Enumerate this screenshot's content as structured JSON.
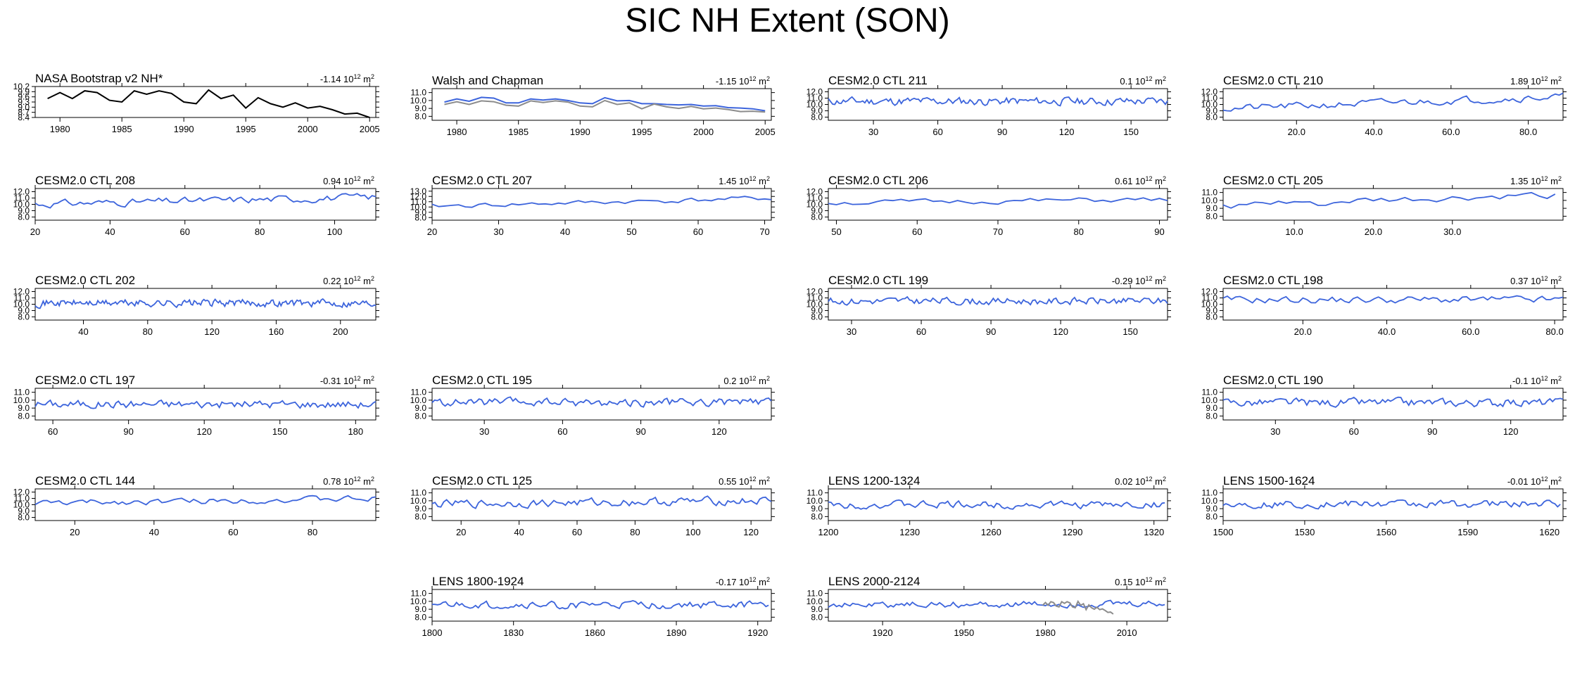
{
  "title": "SIC NH Extent (SON)",
  "colors": {
    "model": "#3c64dc",
    "obs_black": "#000000",
    "obs_gray": "#8c8c8c",
    "axis": "#000000"
  },
  "chart_data": [
    {
      "type": "line",
      "title": "NASA Bootstrap v2 NH*",
      "trend": "-1.14",
      "trend_units": "10",
      "trend_exp": "12",
      "trend_unit": "m",
      "trend_unit_exp": "2",
      "xlim": [
        1978,
        2005.5
      ],
      "ylim": [
        8.4,
        10.2
      ],
      "xticks": [
        1980,
        1985,
        1990,
        1995,
        2000,
        2005
      ],
      "xtick_labels": [
        "1980",
        "1985",
        "1990",
        "1995",
        "2000",
        "2005"
      ],
      "yticks": [
        8.4,
        8.7,
        9.0,
        9.3,
        9.6,
        9.9,
        10.2
      ],
      "ytick_labels": [
        "8.4",
        "8.7",
        "9.0",
        "9.3",
        "9.6",
        "9.9",
        "10.2"
      ],
      "series": [
        {
          "color": "obs_black",
          "x": [
            1979,
            1980,
            1981,
            1982,
            1983,
            1984,
            1985,
            1986,
            1987,
            1988,
            1989,
            1990,
            1991,
            1992,
            1993,
            1994,
            1995,
            1996,
            1997,
            1998,
            1999,
            2000,
            2001,
            2002,
            2003,
            2004,
            2005
          ],
          "values": [
            9.5,
            9.85,
            9.5,
            9.95,
            9.85,
            9.4,
            9.3,
            9.95,
            9.75,
            9.95,
            9.8,
            9.3,
            9.2,
            10.0,
            9.5,
            9.7,
            8.95,
            9.55,
            9.2,
            9.0,
            9.25,
            8.95,
            9.05,
            8.85,
            8.6,
            8.65,
            8.4
          ]
        }
      ]
    },
    {
      "type": "line",
      "title": "Walsh and Chapman",
      "trend": "-1.15",
      "xlim": [
        1978,
        2005.5
      ],
      "ylim": [
        7.5,
        11.5
      ],
      "xticks": [
        1980,
        1985,
        1990,
        1995,
        2000,
        2005
      ],
      "xtick_labels": [
        "1980",
        "1985",
        "1990",
        "1995",
        "2000",
        "2005"
      ],
      "yticks": [
        8.0,
        9.0,
        10.0,
        11.0
      ],
      "ytick_labels": [
        "8.0",
        "9.0",
        "10.0",
        "11.0"
      ],
      "series": [
        {
          "color": "model",
          "x": [
            1979,
            1980,
            1981,
            1982,
            1983,
            1984,
            1985,
            1986,
            1987,
            1988,
            1989,
            1990,
            1991,
            1992,
            1993,
            1994,
            1995,
            1996,
            1997,
            1998,
            1999,
            2000,
            2001,
            2002,
            2003,
            2004,
            2005
          ],
          "values": [
            9.8,
            10.2,
            9.9,
            10.4,
            10.3,
            9.7,
            9.7,
            10.2,
            10.05,
            10.2,
            10.0,
            9.7,
            9.6,
            10.35,
            9.95,
            10.0,
            9.6,
            9.6,
            9.5,
            9.45,
            9.5,
            9.3,
            9.35,
            9.1,
            9.05,
            8.95,
            8.7
          ]
        },
        {
          "color": "obs_gray",
          "x": [
            1979,
            1980,
            1981,
            1982,
            1983,
            1984,
            1985,
            1986,
            1987,
            1988,
            1989,
            1990,
            1991,
            1992,
            1993,
            1994,
            1995,
            1996,
            1997,
            1998,
            1999,
            2000,
            2001,
            2002,
            2003,
            2004,
            2005
          ],
          "values": [
            9.5,
            9.85,
            9.5,
            9.95,
            9.85,
            9.4,
            9.3,
            9.95,
            9.75,
            9.95,
            9.8,
            9.3,
            9.2,
            10.0,
            9.5,
            9.7,
            8.95,
            9.55,
            9.2,
            9.0,
            9.25,
            8.95,
            9.05,
            8.85,
            8.6,
            8.65,
            8.55
          ]
        }
      ]
    },
    {
      "type": "line",
      "title": "CESM2.0 CTL 211",
      "trend": "0.1",
      "xlim": [
        9,
        167
      ],
      "ylim": [
        7.5,
        12.5
      ],
      "xticks": [
        30,
        60,
        90,
        120,
        150
      ],
      "xtick_labels": [
        "30",
        "60",
        "90",
        "120",
        "150"
      ],
      "yticks": [
        8.0,
        9.0,
        10.0,
        11.0,
        12.0
      ],
      "ytick_labels": [
        "8.0",
        "9.0",
        "10.0",
        "11.0",
        "12.0"
      ],
      "gen": {
        "x0": 9,
        "x1": 167,
        "mean": 10.5,
        "amp": 0.55,
        "seed": 11
      }
    },
    {
      "type": "line",
      "title": "CESM2.0 CTL 210",
      "trend": "1.89",
      "xlim": [
        1,
        89
      ],
      "ylim": [
        7.5,
        12.5
      ],
      "xticks": [
        20,
        40,
        60,
        80
      ],
      "xtick_labels": [
        "20.0",
        "40.0",
        "60.0",
        "80.0"
      ],
      "yticks": [
        8.0,
        9.0,
        10.0,
        11.0,
        12.0
      ],
      "ytick_labels": [
        "8.0",
        "9.0",
        "10.0",
        "11.0",
        "12.0"
      ],
      "gen": {
        "x0": 1,
        "x1": 89,
        "mean": 10.3,
        "amp": 0.5,
        "seed": 21,
        "slope": 0.022
      }
    },
    {
      "type": "line",
      "title": "CESM2.0 CTL 208",
      "trend": "0.94",
      "xlim": [
        20,
        111
      ],
      "ylim": [
        7.5,
        12.5
      ],
      "xticks": [
        20,
        40,
        60,
        80,
        100
      ],
      "xtick_labels": [
        "20",
        "40",
        "60",
        "80",
        "100"
      ],
      "yticks": [
        8.0,
        9.0,
        10.0,
        11.0,
        12.0
      ],
      "ytick_labels": [
        "8.0",
        "9.0",
        "10.0",
        "11.0",
        "12.0"
      ],
      "gen": {
        "x0": 20,
        "x1": 111,
        "mean": 10.6,
        "amp": 0.5,
        "seed": 31,
        "slope": 0.012
      }
    },
    {
      "type": "line",
      "title": "CESM2.0 CTL 207",
      "trend": "1.45",
      "xlim": [
        20,
        71
      ],
      "ylim": [
        7.5,
        13.5
      ],
      "xticks": [
        20,
        30,
        40,
        50,
        60,
        70
      ],
      "xtick_labels": [
        "20",
        "30",
        "40",
        "50",
        "60",
        "70"
      ],
      "yticks": [
        8.0,
        9.0,
        10.0,
        11.0,
        12.0,
        13.0
      ],
      "ytick_labels": [
        "8.0",
        "9.0",
        "10.0",
        "11.0",
        "12.0",
        "13.0"
      ],
      "gen": {
        "x0": 20,
        "x1": 71,
        "mean": 10.9,
        "amp": 0.4,
        "seed": 41,
        "slope": 0.03
      }
    },
    {
      "type": "line",
      "title": "CESM2.0 CTL 206",
      "trend": "0.61",
      "xlim": [
        49,
        91
      ],
      "ylim": [
        7.5,
        12.5
      ],
      "xticks": [
        50,
        60,
        70,
        80,
        90
      ],
      "xtick_labels": [
        "50",
        "60",
        "70",
        "80",
        "90"
      ],
      "yticks": [
        8.0,
        9.0,
        10.0,
        11.0,
        12.0
      ],
      "ytick_labels": [
        "8.0",
        "9.0",
        "10.0",
        "11.0",
        "12.0"
      ],
      "gen": {
        "x0": 49,
        "x1": 91,
        "mean": 10.5,
        "amp": 0.35,
        "seed": 51,
        "slope": 0.012
      }
    },
    {
      "type": "line",
      "title": "CESM2.0 CTL 205",
      "trend": "1.35",
      "xlim": [
        1,
        44
      ],
      "ylim": [
        7.5,
        11.5
      ],
      "xticks": [
        10,
        20,
        30
      ],
      "xtick_labels": [
        "10.0",
        "20.0",
        "30.0"
      ],
      "yticks": [
        8.0,
        9.0,
        10.0,
        11.0
      ],
      "ytick_labels": [
        "8.0",
        "9.0",
        "10.0",
        "11.0"
      ],
      "gen": {
        "x0": 1,
        "x1": 43,
        "mean": 9.9,
        "amp": 0.4,
        "seed": 61,
        "slope": 0.03
      }
    },
    {
      "type": "line",
      "title": "CESM2.0 CTL 202",
      "trend": "0.22",
      "xlim": [
        10,
        222
      ],
      "ylim": [
        7.5,
        12.5
      ],
      "xticks": [
        40,
        80,
        120,
        160,
        200
      ],
      "xtick_labels": [
        "40",
        "80",
        "120",
        "160",
        "200"
      ],
      "yticks": [
        8.0,
        9.0,
        10.0,
        11.0,
        12.0
      ],
      "ytick_labels": [
        "8.0",
        "9.0",
        "10.0",
        "11.0",
        "12.0"
      ],
      "gen": {
        "x0": 10,
        "x1": 222,
        "mean": 10.2,
        "amp": 0.5,
        "seed": 71
      }
    },
    {
      "type": "line",
      "title": "CESM2.0 CTL 199",
      "trend": "-0.29",
      "xlim": [
        20,
        166
      ],
      "ylim": [
        7.5,
        12.5
      ],
      "xticks": [
        30,
        60,
        90,
        120,
        150
      ],
      "xtick_labels": [
        "30",
        "60",
        "90",
        "120",
        "150"
      ],
      "yticks": [
        8.0,
        9.0,
        10.0,
        11.0,
        12.0
      ],
      "ytick_labels": [
        "8.0",
        "9.0",
        "10.0",
        "11.0",
        "12.0"
      ],
      "gen": {
        "x0": 20,
        "x1": 166,
        "mean": 10.5,
        "amp": 0.5,
        "seed": 81
      }
    },
    {
      "type": "line",
      "title": "CESM2.0 CTL 198",
      "trend": "0.37",
      "xlim": [
        1,
        82
      ],
      "ylim": [
        7.5,
        12.5
      ],
      "xticks": [
        20,
        40,
        60,
        80
      ],
      "xtick_labels": [
        "20.0",
        "40.0",
        "60.0",
        "80.0"
      ],
      "yticks": [
        8.0,
        9.0,
        10.0,
        11.0,
        12.0
      ],
      "ytick_labels": [
        "8.0",
        "9.0",
        "10.0",
        "11.0",
        "12.0"
      ],
      "gen": {
        "x0": 1,
        "x1": 82,
        "mean": 10.7,
        "amp": 0.5,
        "seed": 91
      }
    },
    {
      "type": "line",
      "title": "CESM2.0 CTL 197",
      "trend": "-0.31",
      "xlim": [
        53,
        188
      ],
      "ylim": [
        7.5,
        11.5
      ],
      "xticks": [
        60,
        90,
        120,
        150,
        180
      ],
      "xtick_labels": [
        "60",
        "90",
        "120",
        "150",
        "180"
      ],
      "yticks": [
        8.0,
        9.0,
        10.0,
        11.0
      ],
      "ytick_labels": [
        "8.0",
        "9.0",
        "10.0",
        "11.0"
      ],
      "gen": {
        "x0": 53,
        "x1": 188,
        "mean": 9.5,
        "amp": 0.45,
        "seed": 101
      }
    },
    {
      "type": "line",
      "title": "CESM2.0 CTL 195",
      "trend": "0.2",
      "xlim": [
        10,
        140
      ],
      "ylim": [
        7.5,
        11.5
      ],
      "xticks": [
        30,
        60,
        90,
        120
      ],
      "xtick_labels": [
        "30",
        "60",
        "90",
        "120"
      ],
      "yticks": [
        8.0,
        9.0,
        10.0,
        11.0
      ],
      "ytick_labels": [
        "8.0",
        "9.0",
        "10.0",
        "11.0"
      ],
      "gen": {
        "x0": 10,
        "x1": 140,
        "mean": 9.7,
        "amp": 0.45,
        "seed": 111
      }
    },
    {
      "type": "line",
      "title": "CESM2.0 CTL 190",
      "trend": "-0.1",
      "xlim": [
        10,
        140
      ],
      "ylim": [
        7.5,
        11.5
      ],
      "xticks": [
        30,
        60,
        90,
        120
      ],
      "xtick_labels": [
        "30",
        "60",
        "90",
        "120"
      ],
      "yticks": [
        8.0,
        9.0,
        10.0,
        11.0
      ],
      "ytick_labels": [
        "8.0",
        "9.0",
        "10.0",
        "11.0"
      ],
      "gen": {
        "x0": 10,
        "x1": 140,
        "mean": 9.7,
        "amp": 0.45,
        "seed": 121
      }
    },
    {
      "type": "line",
      "title": "CESM2.0 CTL 144",
      "trend": "0.78",
      "xlim": [
        10,
        96
      ],
      "ylim": [
        7.5,
        12.5
      ],
      "xticks": [
        20,
        40,
        60,
        80
      ],
      "xtick_labels": [
        "20",
        "40",
        "60",
        "80"
      ],
      "yticks": [
        8.0,
        9.0,
        10.0,
        11.0,
        12.0
      ],
      "ytick_labels": [
        "8.0",
        "9.0",
        "10.0",
        "11.0",
        "12.0"
      ],
      "gen": {
        "x0": 10,
        "x1": 96,
        "mean": 10.6,
        "amp": 0.4,
        "seed": 131,
        "slope": 0.008
      }
    },
    {
      "type": "line",
      "title": "CESM2.0 CTL 125",
      "trend": "0.55",
      "xlim": [
        10,
        127
      ],
      "ylim": [
        7.5,
        11.5
      ],
      "xticks": [
        20,
        40,
        60,
        80,
        100,
        120
      ],
      "xtick_labels": [
        "20",
        "40",
        "60",
        "80",
        "100",
        "120"
      ],
      "yticks": [
        8.0,
        9.0,
        10.0,
        11.0
      ],
      "ytick_labels": [
        "8.0",
        "9.0",
        "10.0",
        "11.0"
      ],
      "gen": {
        "x0": 10,
        "x1": 127,
        "mean": 9.8,
        "amp": 0.45,
        "seed": 141,
        "slope": 0.004
      }
    },
    {
      "type": "line",
      "title": "LENS 1200-1324",
      "trend": "0.02",
      "xlim": [
        1200,
        1325
      ],
      "ylim": [
        7.5,
        11.5
      ],
      "xticks": [
        1200,
        1230,
        1260,
        1290,
        1320
      ],
      "xtick_labels": [
        "1200",
        "1230",
        "1260",
        "1290",
        "1320"
      ],
      "yticks": [
        8.0,
        9.0,
        10.0,
        11.0
      ],
      "ytick_labels": [
        "8.0",
        "9.0",
        "10.0",
        "11.0"
      ],
      "gen": {
        "x0": 1200,
        "x1": 1324,
        "mean": 9.5,
        "amp": 0.4,
        "seed": 151
      }
    },
    {
      "type": "line",
      "title": "LENS 1500-1624",
      "trend": "-0.01",
      "xlim": [
        1500,
        1625
      ],
      "ylim": [
        7.5,
        11.5
      ],
      "xticks": [
        1500,
        1530,
        1560,
        1590,
        1620
      ],
      "xtick_labels": [
        "1500",
        "1530",
        "1560",
        "1590",
        "1620"
      ],
      "yticks": [
        8.0,
        9.0,
        10.0,
        11.0
      ],
      "ytick_labels": [
        "8.0",
        "9.0",
        "10.0",
        "11.0"
      ],
      "gen": {
        "x0": 1500,
        "x1": 1624,
        "mean": 9.6,
        "amp": 0.4,
        "seed": 161
      }
    },
    {
      "type": "line",
      "title": "LENS 1800-1924",
      "trend": "-0.17",
      "xlim": [
        1800,
        1925
      ],
      "ylim": [
        7.5,
        11.5
      ],
      "xticks": [
        1800,
        1830,
        1860,
        1890,
        1920
      ],
      "xtick_labels": [
        "1800",
        "1830",
        "1860",
        "1890",
        "1920"
      ],
      "yticks": [
        8.0,
        9.0,
        10.0,
        11.0
      ],
      "ytick_labels": [
        "8.0",
        "9.0",
        "10.0",
        "11.0"
      ],
      "gen": {
        "x0": 1800,
        "x1": 1924,
        "mean": 9.5,
        "amp": 0.4,
        "seed": 171
      }
    },
    {
      "type": "line",
      "title": "LENS 2000-2124",
      "trend": "0.15",
      "xlim": [
        1900,
        2025
      ],
      "ylim": [
        7.5,
        11.5
      ],
      "xticks": [
        1920,
        1950,
        1980,
        2010
      ],
      "xtick_labels": [
        "1920",
        "1950",
        "1980",
        "2010"
      ],
      "yticks": [
        8.0,
        9.0,
        10.0,
        11.0
      ],
      "ytick_labels": [
        "8.0",
        "9.0",
        "10.0",
        "11.0"
      ],
      "gen": {
        "x0": 1900,
        "x1": 2024,
        "mean": 9.6,
        "amp": 0.35,
        "seed": 181
      },
      "series": [
        {
          "color": "obs_gray",
          "x": [
            1979,
            1980,
            1981,
            1982,
            1983,
            1984,
            1985,
            1986,
            1987,
            1988,
            1989,
            1990,
            1991,
            1992,
            1993,
            1994,
            1995,
            1996,
            1997,
            1998,
            1999,
            2000,
            2001,
            2002,
            2003,
            2004,
            2005
          ],
          "values": [
            9.5,
            9.85,
            9.5,
            9.95,
            9.85,
            9.4,
            9.3,
            9.95,
            9.75,
            9.95,
            9.8,
            9.3,
            9.2,
            10.0,
            9.5,
            9.7,
            8.95,
            9.55,
            9.2,
            9.0,
            9.25,
            8.95,
            9.05,
            8.85,
            8.6,
            8.65,
            8.4
          ]
        }
      ]
    }
  ]
}
